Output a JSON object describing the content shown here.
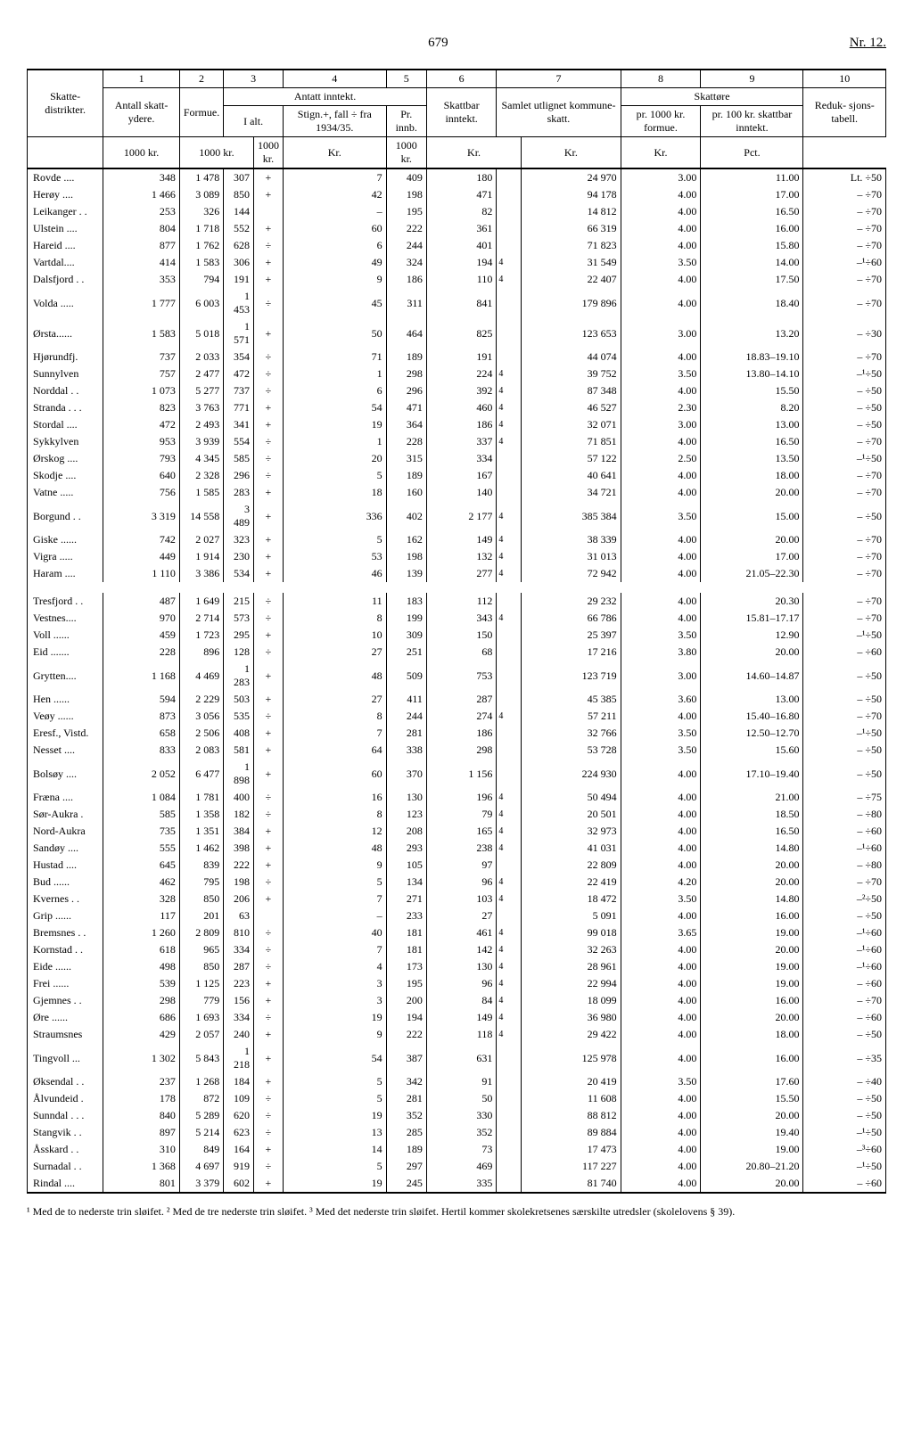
{
  "header": {
    "page_center": "679",
    "page_right": "Nr. 12."
  },
  "col_numbers": [
    "1",
    "2",
    "3",
    "4",
    "5",
    "6",
    "7",
    "8",
    "9",
    "10"
  ],
  "head": {
    "skatte": "Skatte-\ndistrikter.",
    "antall": "Antall\nskatt-\nydere.",
    "formue": "Formue.",
    "antatt": "Antatt inntekt.",
    "ialt": "I alt.",
    "stign": "Stign.+,\nfall ÷\nfra\n1934/35.",
    "prinnb": "Pr. innb.",
    "skattbar": "Skattbar\ninntekt.",
    "samlet": "Samlet\nutlignet\nkommune-\nskatt.",
    "skattore": "Skattøre",
    "pr1000": "pr. 1000 kr.\nformue.",
    "pr100": "pr. 100 kr.\nskattbar\ninntekt.",
    "reduk": "Reduk-\nsjons-\ntabell."
  },
  "unit_row": [
    "",
    "1000 kr.",
    "1000 kr.",
    "1000 kr.",
    "Kr.",
    "1000 kr.",
    "Kr.",
    "Kr.",
    "Kr.",
    "Pct."
  ],
  "rows": [
    {
      "d": "Rovde ....",
      "a": "348",
      "f": "1 478",
      "ialt": "307",
      "s": "+",
      "sv": "7",
      "pi": "409",
      "sb": "180",
      "sk": "24 970",
      "p1": "3.00",
      "p2": "11.00",
      "rt": "Lt. ÷50",
      "n7": ""
    },
    {
      "d": "Herøy ....",
      "a": "1 466",
      "f": "3 089",
      "ialt": "850",
      "s": "+",
      "sv": "42",
      "pi": "198",
      "sb": "471",
      "sk": "94 178",
      "p1": "4.00",
      "p2": "17.00",
      "rt": "– ÷70",
      "n7": ""
    },
    {
      "d": "Leikanger . .",
      "a": "253",
      "f": "326",
      "ialt": "144",
      "s": "",
      "sv": "–",
      "pi": "195",
      "sb": "82",
      "sk": "14 812",
      "p1": "4.00",
      "p2": "16.50",
      "rt": "– ÷70",
      "n7": ""
    },
    {
      "d": "Ulstein ....",
      "a": "804",
      "f": "1 718",
      "ialt": "552",
      "s": "+",
      "sv": "60",
      "pi": "222",
      "sb": "361",
      "sk": "66 319",
      "p1": "4.00",
      "p2": "16.00",
      "rt": "– ÷70",
      "n7": ""
    },
    {
      "d": "Hareid ....",
      "a": "877",
      "f": "1 762",
      "ialt": "628",
      "s": "÷",
      "sv": "6",
      "pi": "244",
      "sb": "401",
      "sk": "71 823",
      "p1": "4.00",
      "p2": "15.80",
      "rt": "– ÷70",
      "n7": ""
    },
    {
      "d": "Vartdal....",
      "a": "414",
      "f": "1 583",
      "ialt": "306",
      "s": "+",
      "sv": "49",
      "pi": "324",
      "sb": "194",
      "sk": "31 549",
      "p1": "3.50",
      "p2": "14.00",
      "rt": "–¹÷60",
      "n7": "4"
    },
    {
      "d": "Dalsfjord . .",
      "a": "353",
      "f": "794",
      "ialt": "191",
      "s": "+",
      "sv": "9",
      "pi": "186",
      "sb": "110",
      "sk": "22 407",
      "p1": "4.00",
      "p2": "17.50",
      "rt": "– ÷70",
      "n7": "4"
    },
    {
      "d": "Volda .....",
      "a": "1 777",
      "f": "6 003",
      "ialt": "1 453",
      "s": "÷",
      "sv": "45",
      "pi": "311",
      "sb": "841",
      "sk": "179 896",
      "p1": "4.00",
      "p2": "18.40",
      "rt": "– ÷70",
      "n7": ""
    },
    {
      "d": "Ørsta......",
      "a": "1 583",
      "f": "5 018",
      "ialt": "1 571",
      "s": "+",
      "sv": "50",
      "pi": "464",
      "sb": "825",
      "sk": "123 653",
      "p1": "3.00",
      "p2": "13.20",
      "rt": "– ÷30",
      "n7": ""
    },
    {
      "d": "Hjørundfj.",
      "a": "737",
      "f": "2 033",
      "ialt": "354",
      "s": "÷",
      "sv": "71",
      "pi": "189",
      "sb": "191",
      "sk": "44 074",
      "p1": "4.00",
      "p2": "18.83–19.10",
      "rt": "– ÷70",
      "n7": ""
    },
    {
      "d": "Sunnylven",
      "a": "757",
      "f": "2 477",
      "ialt": "472",
      "s": "÷",
      "sv": "1",
      "pi": "298",
      "sb": "224",
      "sk": "39 752",
      "p1": "3.50",
      "p2": "13.80–14.10",
      "rt": "–¹÷50",
      "n7": "4"
    },
    {
      "d": "Norddal  . .",
      "a": "1 073",
      "f": "5 277",
      "ialt": "737",
      "s": "÷",
      "sv": "6",
      "pi": "296",
      "sb": "392",
      "sk": "87 348",
      "p1": "4.00",
      "p2": "15.50",
      "rt": "– ÷50",
      "n7": "4"
    },
    {
      "d": "Stranda . . .",
      "a": "823",
      "f": "3 763",
      "ialt": "771",
      "s": "+",
      "sv": "54",
      "pi": "471",
      "sb": "460",
      "sk": "46 527",
      "p1": "2.30",
      "p2": "8.20",
      "rt": "– ÷50",
      "n7": "4"
    },
    {
      "d": "Stordal ....",
      "a": "472",
      "f": "2 493",
      "ialt": "341",
      "s": "+",
      "sv": "19",
      "pi": "364",
      "sb": "186",
      "sk": "32 071",
      "p1": "3.00",
      "p2": "13.00",
      "rt": "– ÷50",
      "n7": "4"
    },
    {
      "d": "Sykkylven",
      "a": "953",
      "f": "3 939",
      "ialt": "554",
      "s": "÷",
      "sv": "1",
      "pi": "228",
      "sb": "337",
      "sk": "71 851",
      "p1": "4.00",
      "p2": "16.50",
      "rt": "– ÷70",
      "n7": "4"
    },
    {
      "d": "Ørskog ....",
      "a": "793",
      "f": "4 345",
      "ialt": "585",
      "s": "÷",
      "sv": "20",
      "pi": "315",
      "sb": "334",
      "sk": "57 122",
      "p1": "2.50",
      "p2": "13.50",
      "rt": "–¹÷50",
      "n7": ""
    },
    {
      "d": "Skodje ....",
      "a": "640",
      "f": "2 328",
      "ialt": "296",
      "s": "÷",
      "sv": "5",
      "pi": "189",
      "sb": "167",
      "sk": "40 641",
      "p1": "4.00",
      "p2": "18.00",
      "rt": "– ÷70",
      "n7": ""
    },
    {
      "d": "Vatne .....",
      "a": "756",
      "f": "1 585",
      "ialt": "283",
      "s": "+",
      "sv": "18",
      "pi": "160",
      "sb": "140",
      "sk": "34 721",
      "p1": "4.00",
      "p2": "20.00",
      "rt": "– ÷70",
      "n7": ""
    },
    {
      "d": "Borgund  . .",
      "a": "3 319",
      "f": "14 558",
      "ialt": "3 489",
      "s": "+",
      "sv": "336",
      "pi": "402",
      "sb": "2 177",
      "sk": "385 384",
      "p1": "3.50",
      "p2": "15.00",
      "rt": "– ÷50",
      "n7": "4"
    },
    {
      "d": "Giske ......",
      "a": "742",
      "f": "2 027",
      "ialt": "323",
      "s": "+",
      "sv": "5",
      "pi": "162",
      "sb": "149",
      "sk": "38 339",
      "p1": "4.00",
      "p2": "20.00",
      "rt": "– ÷70",
      "n7": "4"
    },
    {
      "d": "Vigra .....",
      "a": "449",
      "f": "1 914",
      "ialt": "230",
      "s": "+",
      "sv": "53",
      "pi": "198",
      "sb": "132",
      "sk": "31 013",
      "p1": "4.00",
      "p2": "17.00",
      "rt": "– ÷70",
      "n7": "4"
    },
    {
      "d": "Haram ....",
      "a": "1 110",
      "f": "3 386",
      "ialt": "534",
      "s": "+",
      "sv": "46",
      "pi": "139",
      "sb": "277",
      "sk": "72 942",
      "p1": "4.00",
      "p2": "21.05–22.30",
      "rt": "– ÷70",
      "n7": "4"
    },
    {
      "spacer": true
    },
    {
      "d": "Tresfjord . .",
      "a": "487",
      "f": "1 649",
      "ialt": "215",
      "s": "÷",
      "sv": "11",
      "pi": "183",
      "sb": "112",
      "sk": "29 232",
      "p1": "4.00",
      "p2": "20.30",
      "rt": "– ÷70",
      "n7": ""
    },
    {
      "d": "Vestnes....",
      "a": "970",
      "f": "2 714",
      "ialt": "573",
      "s": "÷",
      "sv": "8",
      "pi": "199",
      "sb": "343",
      "sk": "66 786",
      "p1": "4.00",
      "p2": "15.81–17.17",
      "rt": "– ÷70",
      "n7": "4"
    },
    {
      "d": "Voll ......",
      "a": "459",
      "f": "1 723",
      "ialt": "295",
      "s": "+",
      "sv": "10",
      "pi": "309",
      "sb": "150",
      "sk": "25 397",
      "p1": "3.50",
      "p2": "12.90",
      "rt": "–¹÷50",
      "n7": ""
    },
    {
      "d": "Eid .......",
      "a": "228",
      "f": "896",
      "ialt": "128",
      "s": "÷",
      "sv": "27",
      "pi": "251",
      "sb": "68",
      "sk": "17 216",
      "p1": "3.80",
      "p2": "20.00",
      "rt": "– ÷60",
      "n7": ""
    },
    {
      "d": "Grytten....",
      "a": "1 168",
      "f": "4 469",
      "ialt": "1 283",
      "s": "+",
      "sv": "48",
      "pi": "509",
      "sb": "753",
      "sk": "123 719",
      "p1": "3.00",
      "p2": "14.60–14.87",
      "rt": "– ÷50",
      "n7": ""
    },
    {
      "d": "Hen ......",
      "a": "594",
      "f": "2 229",
      "ialt": "503",
      "s": "+",
      "sv": "27",
      "pi": "411",
      "sb": "287",
      "sk": "45 385",
      "p1": "3.60",
      "p2": "13.00",
      "rt": "– ÷50",
      "n7": ""
    },
    {
      "d": "Veøy ......",
      "a": "873",
      "f": "3 056",
      "ialt": "535",
      "s": "÷",
      "sv": "8",
      "pi": "244",
      "sb": "274",
      "sk": "57 211",
      "p1": "4.00",
      "p2": "15.40–16.80",
      "rt": "– ÷70",
      "n7": "4"
    },
    {
      "d": "Eresf., Vistd.",
      "a": "658",
      "f": "2 506",
      "ialt": "408",
      "s": "+",
      "sv": "7",
      "pi": "281",
      "sb": "186",
      "sk": "32 766",
      "p1": "3.50",
      "p2": "12.50–12.70",
      "rt": "–¹÷50",
      "n7": ""
    },
    {
      "d": "Nesset ....",
      "a": "833",
      "f": "2 083",
      "ialt": "581",
      "s": "+",
      "sv": "64",
      "pi": "338",
      "sb": "298",
      "sk": "53 728",
      "p1": "3.50",
      "p2": "15.60",
      "rt": "– ÷50",
      "n7": ""
    },
    {
      "d": "Bolsøy ....",
      "a": "2 052",
      "f": "6 477",
      "ialt": "1 898",
      "s": "+",
      "sv": "60",
      "pi": "370",
      "sb": "1 156",
      "sk": "224 930",
      "p1": "4.00",
      "p2": "17.10–19.40",
      "rt": "– ÷50",
      "n7": ""
    },
    {
      "d": "Fræna ....",
      "a": "1 084",
      "f": "1 781",
      "ialt": "400",
      "s": "÷",
      "sv": "16",
      "pi": "130",
      "sb": "196",
      "sk": "50 494",
      "p1": "4.00",
      "p2": "21.00",
      "rt": "– ÷75",
      "n7": "4"
    },
    {
      "d": "Sør-Aukra .",
      "a": "585",
      "f": "1 358",
      "ialt": "182",
      "s": "÷",
      "sv": "8",
      "pi": "123",
      "sb": "79",
      "sk": "20 501",
      "p1": "4.00",
      "p2": "18.50",
      "rt": "– ÷80",
      "n7": "4"
    },
    {
      "d": "Nord-Aukra",
      "a": "735",
      "f": "1 351",
      "ialt": "384",
      "s": "+",
      "sv": "12",
      "pi": "208",
      "sb": "165",
      "sk": "32 973",
      "p1": "4.00",
      "p2": "16.50",
      "rt": "– ÷60",
      "n7": "4"
    },
    {
      "d": "Sandøy ....",
      "a": "555",
      "f": "1 462",
      "ialt": "398",
      "s": "+",
      "sv": "48",
      "pi": "293",
      "sb": "238",
      "sk": "41 031",
      "p1": "4.00",
      "p2": "14.80",
      "rt": "–¹÷60",
      "n7": "4"
    },
    {
      "d": "Hustad ....",
      "a": "645",
      "f": "839",
      "ialt": "222",
      "s": "+",
      "sv": "9",
      "pi": "105",
      "sb": "97",
      "sk": "22 809",
      "p1": "4.00",
      "p2": "20.00",
      "rt": "– ÷80",
      "n7": ""
    },
    {
      "d": "Bud ......",
      "a": "462",
      "f": "795",
      "ialt": "198",
      "s": "÷",
      "sv": "5",
      "pi": "134",
      "sb": "96",
      "sk": "22 419",
      "p1": "4.20",
      "p2": "20.00",
      "rt": "– ÷70",
      "n7": "4"
    },
    {
      "d": "Kvernes  . .",
      "a": "328",
      "f": "850",
      "ialt": "206",
      "s": "+",
      "sv": "7",
      "pi": "271",
      "sb": "103",
      "sk": "18 472",
      "p1": "3.50",
      "p2": "14.80",
      "rt": "–²÷50",
      "n7": "4"
    },
    {
      "d": "Grip ......",
      "a": "117",
      "f": "201",
      "ialt": "63",
      "s": "",
      "sv": "–",
      "pi": "233",
      "sb": "27",
      "sk": "5 091",
      "p1": "4.00",
      "p2": "16.00",
      "rt": "– ÷50",
      "n7": ""
    },
    {
      "d": "Bremsnes . .",
      "a": "1 260",
      "f": "2 809",
      "ialt": "810",
      "s": "÷",
      "sv": "40",
      "pi": "181",
      "sb": "461",
      "sk": "99 018",
      "p1": "3.65",
      "p2": "19.00",
      "rt": "–¹÷60",
      "n7": "4"
    },
    {
      "d": "Kornstad . .",
      "a": "618",
      "f": "965",
      "ialt": "334",
      "s": "÷",
      "sv": "7",
      "pi": "181",
      "sb": "142",
      "sk": "32 263",
      "p1": "4.00",
      "p2": "20.00",
      "rt": "–¹÷60",
      "n7": "4"
    },
    {
      "d": "Eide ......",
      "a": "498",
      "f": "850",
      "ialt": "287",
      "s": "÷",
      "sv": "4",
      "pi": "173",
      "sb": "130",
      "sk": "28 961",
      "p1": "4.00",
      "p2": "19.00",
      "rt": "–¹÷60",
      "n7": "4"
    },
    {
      "d": "Frei ......",
      "a": "539",
      "f": "1 125",
      "ialt": "223",
      "s": "+",
      "sv": "3",
      "pi": "195",
      "sb": "96",
      "sk": "22 994",
      "p1": "4.00",
      "p2": "19.00",
      "rt": "– ÷60",
      "n7": "4"
    },
    {
      "d": "Gjemnes  . .",
      "a": "298",
      "f": "779",
      "ialt": "156",
      "s": "+",
      "sv": "3",
      "pi": "200",
      "sb": "84",
      "sk": "18 099",
      "p1": "4.00",
      "p2": "16.00",
      "rt": "– ÷70",
      "n7": "4"
    },
    {
      "d": "Øre ......",
      "a": "686",
      "f": "1 693",
      "ialt": "334",
      "s": "÷",
      "sv": "19",
      "pi": "194",
      "sb": "149",
      "sk": "36 980",
      "p1": "4.00",
      "p2": "20.00",
      "rt": "– ÷60",
      "n7": "4"
    },
    {
      "d": "Straumsnes",
      "a": "429",
      "f": "2 057",
      "ialt": "240",
      "s": "+",
      "sv": "9",
      "pi": "222",
      "sb": "118",
      "sk": "29 422",
      "p1": "4.00",
      "p2": "18.00",
      "rt": "– ÷50",
      "n7": "4"
    },
    {
      "d": "Tingvoll ...",
      "a": "1 302",
      "f": "5 843",
      "ialt": "1 218",
      "s": "+",
      "sv": "54",
      "pi": "387",
      "sb": "631",
      "sk": "125 978",
      "p1": "4.00",
      "p2": "16.00",
      "rt": "– ÷35",
      "n7": ""
    },
    {
      "d": "Øksendal . .",
      "a": "237",
      "f": "1 268",
      "ialt": "184",
      "s": "+",
      "sv": "5",
      "pi": "342",
      "sb": "91",
      "sk": "20 419",
      "p1": "3.50",
      "p2": "17.60",
      "rt": "– ÷40",
      "n7": ""
    },
    {
      "d": "Ålvundeid .",
      "a": "178",
      "f": "872",
      "ialt": "109",
      "s": "÷",
      "sv": "5",
      "pi": "281",
      "sb": "50",
      "sk": "11 608",
      "p1": "4.00",
      "p2": "15.50",
      "rt": "– ÷50",
      "n7": ""
    },
    {
      "d": "Sunndal . . .",
      "a": "840",
      "f": "5 289",
      "ialt": "620",
      "s": "÷",
      "sv": "19",
      "pi": "352",
      "sb": "330",
      "sk": "88 812",
      "p1": "4.00",
      "p2": "20.00",
      "rt": "– ÷50",
      "n7": ""
    },
    {
      "d": "Stangvik . .",
      "a": "897",
      "f": "5 214",
      "ialt": "623",
      "s": "÷",
      "sv": "13",
      "pi": "285",
      "sb": "352",
      "sk": "89 884",
      "p1": "4.00",
      "p2": "19.40",
      "rt": "–¹÷50",
      "n7": ""
    },
    {
      "d": "Åsskard . .",
      "a": "310",
      "f": "849",
      "ialt": "164",
      "s": "+",
      "sv": "14",
      "pi": "189",
      "sb": "73",
      "sk": "17 473",
      "p1": "4.00",
      "p2": "19.00",
      "rt": "–³÷60",
      "n7": ""
    },
    {
      "d": "Surnadal  . .",
      "a": "1 368",
      "f": "4 697",
      "ialt": "919",
      "s": "÷",
      "sv": "5",
      "pi": "297",
      "sb": "469",
      "sk": "117 227",
      "p1": "4.00",
      "p2": "20.80–21.20",
      "rt": "–¹÷50",
      "n7": ""
    },
    {
      "d": "Rindal ....",
      "a": "801",
      "f": "3 379",
      "ialt": "602",
      "s": "+",
      "sv": "19",
      "pi": "245",
      "sb": "335",
      "sk": "81 740",
      "p1": "4.00",
      "p2": "20.00",
      "rt": "– ÷60",
      "n7": ""
    }
  ],
  "footnotes": "¹ Med de to nederste trin sløifet.   ² Med de tre nederste trin sløifet.   ³ Med det nederste trin sløifet. Hertil kommer skolekretsenes særskilte utredsler (skolelovens § 39)."
}
